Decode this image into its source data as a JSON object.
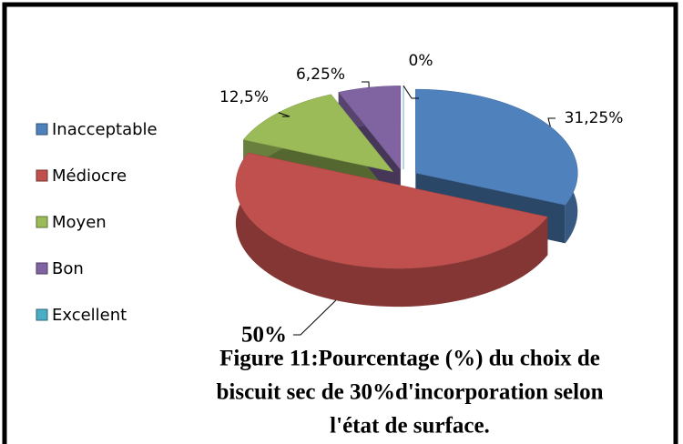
{
  "chart_data": {
    "type": "pie",
    "title": [
      "Figure 11:Pourcentage (%) du choix de",
      "biscuit sec de 30%d'incorporation selon",
      "l'état de surface."
    ],
    "categories": [
      "Inacceptable",
      "Médiocre",
      "Moyen",
      "Bon",
      "Excellent"
    ],
    "values": [
      31.25,
      50,
      12.5,
      6.25,
      0
    ],
    "value_labels": [
      "31,25%",
      "50%",
      "12,5%",
      "6,25%",
      "0%"
    ],
    "colors": [
      "#4f81bd",
      "#c0504d",
      "#9bbb59",
      "#8064a2",
      "#4bacc6"
    ],
    "legend": "left"
  }
}
